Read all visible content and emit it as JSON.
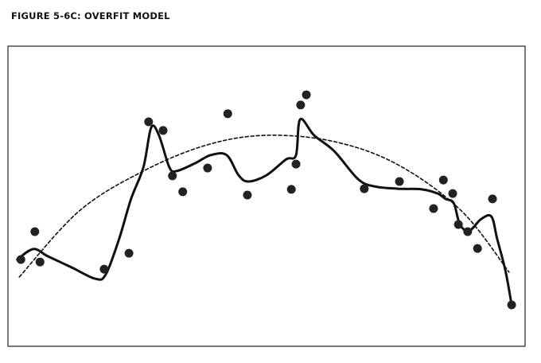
{
  "chart_data": {
    "type": "scatter",
    "title": "FIGURE 5-6C: OVERFIT MODEL",
    "xlim": [
      0,
      100
    ],
    "ylim": [
      0,
      100
    ],
    "series": [
      {
        "style": "markers",
        "color": "#222",
        "x": [
          2.5,
          5.2,
          6.2,
          18.6,
          23.4,
          27.2,
          30.0,
          31.8,
          33.8,
          38.6,
          42.5,
          46.3,
          54.8,
          55.7,
          56.6,
          57.7,
          68.9,
          75.7,
          82.3,
          84.2,
          86.0,
          87.1,
          88.9,
          90.8,
          93.7,
          97.4
        ],
        "values": [
          28.9,
          38.2,
          28.1,
          25.7,
          31.0,
          74.8,
          71.9,
          56.8,
          51.5,
          59.4,
          77.5,
          50.4,
          52.3,
          60.7,
          80.4,
          83.8,
          52.5,
          54.9,
          45.9,
          55.4,
          50.9,
          40.6,
          38.2,
          32.6,
          49.1,
          13.8
        ]
      },
      {
        "style": "solid",
        "color": "#111",
        "x": [
          1.8,
          4.9,
          7.7,
          12.3,
          16.9,
          18.9,
          21.5,
          23.8,
          26.2,
          27.7,
          29.2,
          31.2,
          32.6,
          36.2,
          39.2,
          42.3,
          44.6,
          46.5,
          50.0,
          53.8,
          55.7,
          56.5,
          59.2,
          63.1,
          67.7,
          70.8,
          75.4,
          80.0,
          83.1,
          84.6,
          86.2,
          87.4,
          89.2,
          91.5,
          93.5,
          94.6,
          96.2,
          97.4
        ],
        "values": [
          28.9,
          32.4,
          30.0,
          26.3,
          22.5,
          23.9,
          35.8,
          49.1,
          59.7,
          72.9,
          70.3,
          59.7,
          58.4,
          61.0,
          63.7,
          63.7,
          57.0,
          54.9,
          57.0,
          62.3,
          63.7,
          75.6,
          70.3,
          65.0,
          55.7,
          53.3,
          52.5,
          52.3,
          50.9,
          49.1,
          47.7,
          40.6,
          38.5,
          42.4,
          43.2,
          35.8,
          25.2,
          13.8
        ]
      },
      {
        "style": "dashed",
        "color": "#111",
        "x": [
          2.2,
          13.8,
          26.2,
          38.5,
          50.0,
          63.1,
          75.4,
          87.7,
          96.9
        ],
        "values": [
          23.1,
          45.1,
          58.4,
          67.1,
          70.3,
          68.2,
          60.5,
          45.1,
          24.7
        ]
      }
    ]
  }
}
